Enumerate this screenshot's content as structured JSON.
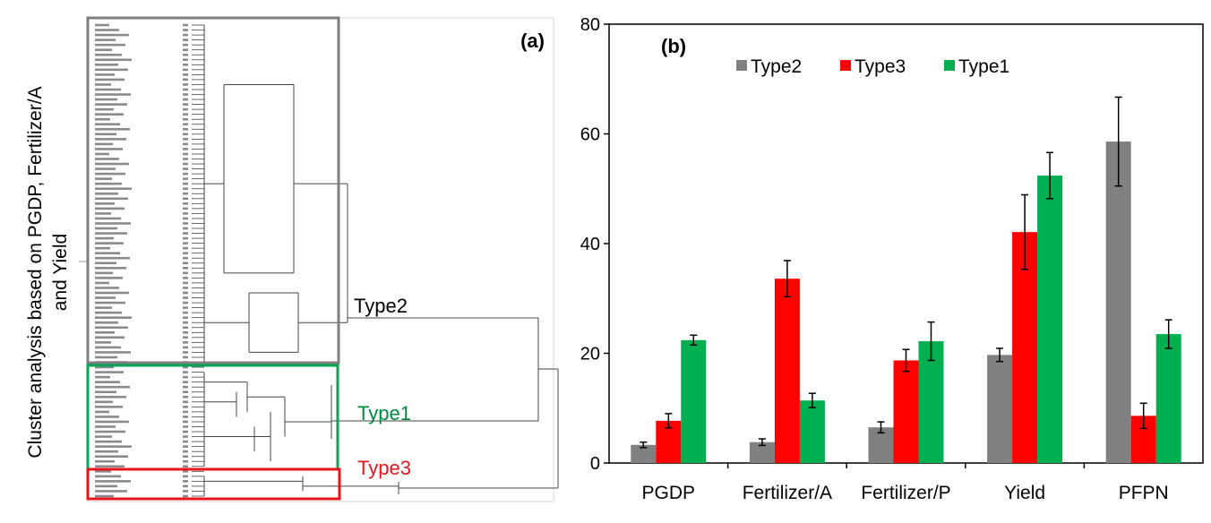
{
  "panel_a": {
    "label": "(a)",
    "ylabel_line1": "Cluster analysis based on PGDP, Fertilizer/A",
    "ylabel_line2": "and Yield",
    "cluster_labels": [
      "Type2",
      "Type1",
      "Type3"
    ],
    "colors": {
      "type2": "#7f7f7f",
      "type1": "#00a650",
      "type3": "#e8141b"
    }
  },
  "chart_data": {
    "type": "bar",
    "title": "(b)",
    "categories": [
      "PGDP",
      "Fertilizer/A",
      "Fertilizer/P",
      "Yield",
      "PFPN"
    ],
    "ylim": [
      0,
      80
    ],
    "yticks": [
      0,
      20,
      40,
      60,
      80
    ],
    "xlabel": "",
    "ylabel": "",
    "legend_position": "top",
    "series": [
      {
        "name": "Type2",
        "color": "#808080",
        "values": [
          3.3,
          3.8,
          6.5,
          19.7,
          58.6
        ],
        "errors": [
          0.5,
          0.6,
          1.0,
          1.2,
          8.1
        ]
      },
      {
        "name": "Type3",
        "color": "#ff0000",
        "values": [
          7.7,
          33.6,
          18.7,
          42.1,
          8.6
        ],
        "errors": [
          1.3,
          3.3,
          2.0,
          6.8,
          2.3
        ]
      },
      {
        "name": "Type1",
        "color": "#00b050",
        "values": [
          22.4,
          11.4,
          22.2,
          52.4,
          23.5
        ],
        "errors": [
          0.9,
          1.3,
          3.5,
          4.2,
          2.6
        ]
      }
    ]
  }
}
